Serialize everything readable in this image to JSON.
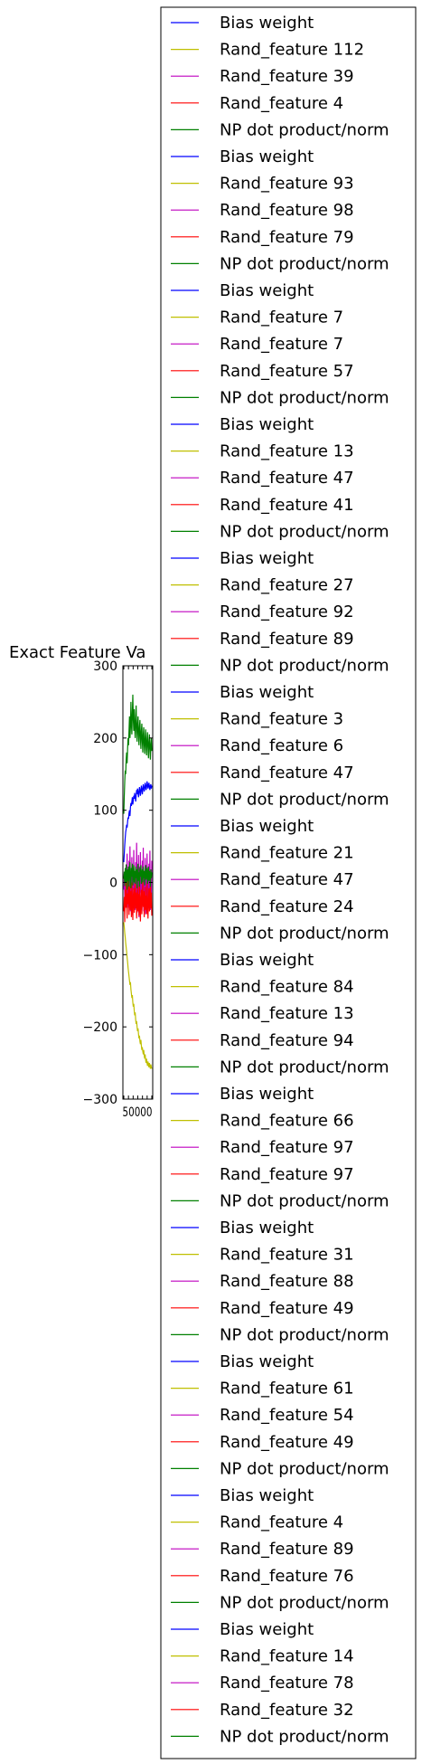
{
  "chart_data": {
    "type": "line",
    "title": "Exact Feature Va",
    "xlabel": "",
    "ylabel": "",
    "ylim": [
      -300,
      300
    ],
    "y_ticks": [
      300,
      200,
      100,
      0,
      -100,
      -200,
      -300
    ],
    "y_tick_labels": [
      "300",
      "200",
      "100",
      "0",
      "−100",
      "−200",
      "−300"
    ],
    "x_tick_labels_text": "50000",
    "x_points": 60,
    "grid": false,
    "legend_position": "right",
    "series_colors": {
      "bias": "#0000ff",
      "rand_a": "#bfbf00",
      "rand_b": "#bf00bf",
      "rand_c": "#ff0000",
      "np": "#008000"
    },
    "series": [
      {
        "name": "Bias weight",
        "color": "#0000ff",
        "values": [
          28,
          40,
          52,
          62,
          70,
          74,
          80,
          76,
          84,
          90,
          88,
          96,
          100,
          92,
          104,
          110,
          106,
          112,
          118,
          108,
          114,
          120,
          116,
          124,
          118,
          112,
          120,
          128,
          122,
          130,
          126,
          118,
          124,
          132,
          128,
          120,
          126,
          134,
          130,
          122,
          128,
          136,
          132,
          126,
          130,
          138,
          134,
          128,
          132,
          140,
          136,
          130,
          134,
          138,
          132,
          128,
          134,
          136,
          130,
          134
        ]
      },
      {
        "name": "Rand_feature",
        "color": "#bfbf00",
        "values": [
          -55,
          -62,
          -70,
          -76,
          -84,
          -90,
          -96,
          -104,
          -110,
          -118,
          -124,
          -130,
          -136,
          -142,
          -138,
          -148,
          -154,
          -160,
          -156,
          -166,
          -172,
          -168,
          -178,
          -184,
          -180,
          -190,
          -196,
          -192,
          -200,
          -206,
          -202,
          -210,
          -216,
          -212,
          -220,
          -224,
          -218,
          -226,
          -232,
          -228,
          -234,
          -238,
          -232,
          -240,
          -244,
          -238,
          -246,
          -250,
          -244,
          -250,
          -254,
          -248,
          -252,
          -256,
          -250,
          -254,
          -258,
          -252,
          -256,
          -258
        ]
      },
      {
        "name": "Rand_feature",
        "color": "#bf00bf",
        "values": [
          -10,
          12,
          -22,
          18,
          -30,
          25,
          -15,
          40,
          -28,
          10,
          -35,
          30,
          -18,
          50,
          -40,
          15,
          -25,
          35,
          -45,
          20,
          -10,
          45,
          -30,
          5,
          -38,
          28,
          -20,
          55,
          -42,
          12,
          -26,
          38,
          -48,
          22,
          -14,
          42,
          -32,
          8,
          -36,
          30,
          -22,
          48,
          -40,
          16,
          -28,
          34,
          -44,
          24,
          -12,
          40,
          -34,
          10,
          -30,
          26,
          -18,
          44,
          -38,
          14,
          -24,
          30
        ]
      },
      {
        "name": "Rand_feature",
        "color": "#ff0000",
        "values": [
          -40,
          -20,
          -55,
          -10,
          -35,
          5,
          -25,
          -50,
          -15,
          -30,
          10,
          -45,
          -20,
          -5,
          -38,
          -12,
          -48,
          0,
          -28,
          -52,
          -18,
          -8,
          -42,
          -22,
          6,
          -36,
          -14,
          -50,
          -26,
          -4,
          -40,
          -16,
          -46,
          2,
          -30,
          -54,
          -20,
          -10,
          -44,
          -24,
          4,
          -34,
          -12,
          -48,
          -28,
          -6,
          -38,
          -18,
          -44,
          0,
          -32,
          -50,
          -22,
          -8,
          -40,
          -26,
          2,
          -36,
          -14,
          -46
        ]
      },
      {
        "name": "NP dot product/norm",
        "color": "#008000",
        "values": [
          95,
          120,
          140,
          155,
          150,
          170,
          180,
          165,
          185,
          200,
          190,
          210,
          230,
          200,
          215,
          250,
          220,
          205,
          235,
          260,
          225,
          210,
          240,
          215,
          200,
          225,
          245,
          210,
          195,
          220,
          230,
          205,
          190,
          215,
          225,
          200,
          185,
          210,
          220,
          195,
          180,
          205,
          215,
          190,
          178,
          200,
          212,
          188,
          176,
          198,
          208,
          186,
          172,
          195,
          205,
          184,
          170,
          192,
          200,
          182
        ]
      },
      {
        "name": "NP dot product/norm",
        "color": "#008000",
        "values": [
          5,
          15,
          -5,
          20,
          0,
          25,
          10,
          -10,
          18,
          2,
          22,
          -6,
          14,
          28,
          4,
          -8,
          20,
          8,
          26,
          -4,
          12,
          24,
          0,
          16,
          -2,
          22,
          6,
          18,
          -8,
          10,
          26,
          2,
          14,
          -6,
          20,
          8,
          24,
          -2,
          12,
          18,
          0,
          22,
          6,
          16,
          -4,
          10,
          24,
          4,
          14,
          20,
          -2,
          8,
          22,
          2,
          16,
          12,
          -6,
          18,
          6,
          14
        ]
      }
    ],
    "legend": [
      {
        "label": "Bias weight",
        "color": "#0000ff"
      },
      {
        "label": "Rand_feature 112",
        "color": "#bfbf00"
      },
      {
        "label": "Rand_feature 39",
        "color": "#bf00bf"
      },
      {
        "label": "Rand_feature 4",
        "color": "#ff0000"
      },
      {
        "label": "NP dot product/norm",
        "color": "#008000"
      },
      {
        "label": "Bias weight",
        "color": "#0000ff"
      },
      {
        "label": "Rand_feature 93",
        "color": "#bfbf00"
      },
      {
        "label": "Rand_feature 98",
        "color": "#bf00bf"
      },
      {
        "label": "Rand_feature 79",
        "color": "#ff0000"
      },
      {
        "label": "NP dot product/norm",
        "color": "#008000"
      },
      {
        "label": "Bias weight",
        "color": "#0000ff"
      },
      {
        "label": "Rand_feature 7",
        "color": "#bfbf00"
      },
      {
        "label": "Rand_feature 7",
        "color": "#bf00bf"
      },
      {
        "label": "Rand_feature 57",
        "color": "#ff0000"
      },
      {
        "label": "NP dot product/norm",
        "color": "#008000"
      },
      {
        "label": "Bias weight",
        "color": "#0000ff"
      },
      {
        "label": "Rand_feature 13",
        "color": "#bfbf00"
      },
      {
        "label": "Rand_feature 47",
        "color": "#bf00bf"
      },
      {
        "label": "Rand_feature 41",
        "color": "#ff0000"
      },
      {
        "label": "NP dot product/norm",
        "color": "#008000"
      },
      {
        "label": "Bias weight",
        "color": "#0000ff"
      },
      {
        "label": "Rand_feature 27",
        "color": "#bfbf00"
      },
      {
        "label": "Rand_feature 92",
        "color": "#bf00bf"
      },
      {
        "label": "Rand_feature 89",
        "color": "#ff0000"
      },
      {
        "label": "NP dot product/norm",
        "color": "#008000"
      },
      {
        "label": "Bias weight",
        "color": "#0000ff"
      },
      {
        "label": "Rand_feature 3",
        "color": "#bfbf00"
      },
      {
        "label": "Rand_feature 6",
        "color": "#bf00bf"
      },
      {
        "label": "Rand_feature 47",
        "color": "#ff0000"
      },
      {
        "label": "NP dot product/norm",
        "color": "#008000"
      },
      {
        "label": "Bias weight",
        "color": "#0000ff"
      },
      {
        "label": "Rand_feature 21",
        "color": "#bfbf00"
      },
      {
        "label": "Rand_feature 47",
        "color": "#bf00bf"
      },
      {
        "label": "Rand_feature 24",
        "color": "#ff0000"
      },
      {
        "label": "NP dot product/norm",
        "color": "#008000"
      },
      {
        "label": "Bias weight",
        "color": "#0000ff"
      },
      {
        "label": "Rand_feature 84",
        "color": "#bfbf00"
      },
      {
        "label": "Rand_feature 13",
        "color": "#bf00bf"
      },
      {
        "label": "Rand_feature 94",
        "color": "#ff0000"
      },
      {
        "label": "NP dot product/norm",
        "color": "#008000"
      },
      {
        "label": "Bias weight",
        "color": "#0000ff"
      },
      {
        "label": "Rand_feature 66",
        "color": "#bfbf00"
      },
      {
        "label": "Rand_feature 97",
        "color": "#bf00bf"
      },
      {
        "label": "Rand_feature 97",
        "color": "#ff0000"
      },
      {
        "label": "NP dot product/norm",
        "color": "#008000"
      },
      {
        "label": "Bias weight",
        "color": "#0000ff"
      },
      {
        "label": "Rand_feature 31",
        "color": "#bfbf00"
      },
      {
        "label": "Rand_feature 88",
        "color": "#bf00bf"
      },
      {
        "label": "Rand_feature 49",
        "color": "#ff0000"
      },
      {
        "label": "NP dot product/norm",
        "color": "#008000"
      },
      {
        "label": "Bias weight",
        "color": "#0000ff"
      },
      {
        "label": "Rand_feature 61",
        "color": "#bfbf00"
      },
      {
        "label": "Rand_feature 54",
        "color": "#bf00bf"
      },
      {
        "label": "Rand_feature 49",
        "color": "#ff0000"
      },
      {
        "label": "NP dot product/norm",
        "color": "#008000"
      },
      {
        "label": "Bias weight",
        "color": "#0000ff"
      },
      {
        "label": "Rand_feature 4",
        "color": "#bfbf00"
      },
      {
        "label": "Rand_feature 89",
        "color": "#bf00bf"
      },
      {
        "label": "Rand_feature 76",
        "color": "#ff0000"
      },
      {
        "label": "NP dot product/norm",
        "color": "#008000"
      },
      {
        "label": "Bias weight",
        "color": "#0000ff"
      },
      {
        "label": "Rand_feature 14",
        "color": "#bfbf00"
      },
      {
        "label": "Rand_feature 78",
        "color": "#bf00bf"
      },
      {
        "label": "Rand_feature 32",
        "color": "#ff0000"
      },
      {
        "label": "NP dot product/norm",
        "color": "#008000"
      }
    ]
  }
}
